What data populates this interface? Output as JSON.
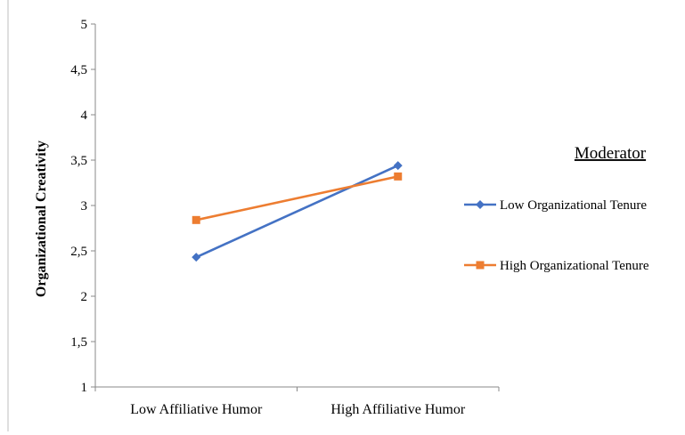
{
  "chart_data": {
    "type": "line",
    "categories": [
      "Low Affiliative Humor",
      "High Affiliative Humor"
    ],
    "ylabel": "Organizational Creativity",
    "ylim": [
      1,
      5
    ],
    "yticks": [
      "1",
      "1,5",
      "2",
      "2,5",
      "3",
      "3,5",
      "4",
      "4,5",
      "5"
    ],
    "grid": false,
    "legend": {
      "title": "Moderator",
      "placement": "right"
    },
    "series": [
      {
        "name": "Low Organizational Tenure",
        "values": [
          2.43,
          3.44
        ],
        "color": "#4472C4",
        "marker": "diamond"
      },
      {
        "name": "High Organizational Tenure",
        "values": [
          2.84,
          3.32
        ],
        "color": "#ED7D31",
        "marker": "square"
      }
    ]
  }
}
